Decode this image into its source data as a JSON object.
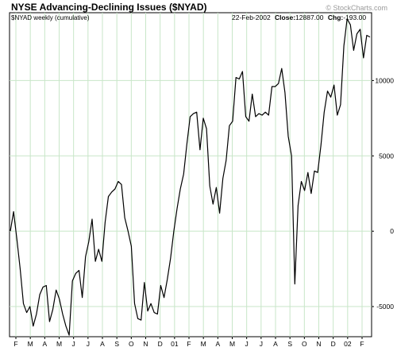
{
  "title": "NYSE Advancing-Declining Issues ($NYAD)",
  "subtitle": "$NYAD weekly (cumulative)",
  "quote": {
    "date": "22-Feb-2002",
    "close_label": "Close:",
    "close": "12887.00",
    "change_label": "Chg:",
    "change": "-193.00"
  },
  "watermark": "© StockCharts.com",
  "colors": {
    "line": "#000000",
    "grid": "#c8e6c8",
    "background": "#ffffff",
    "frame": "#000000"
  },
  "chart_data": {
    "type": "line",
    "ylim": [
      -7000,
      14500
    ],
    "y_ticks": [
      -5000,
      0,
      5000,
      10000
    ],
    "y_tick_labels": [
      "-5000",
      "0",
      "5000",
      "10000"
    ],
    "x_tick_labels": [
      "F",
      "M",
      "A",
      "M",
      "J",
      "J",
      "A",
      "S",
      "O",
      "N",
      "D",
      "01",
      "F",
      "M",
      "A",
      "M",
      "J",
      "J",
      "A",
      "S",
      "O",
      "N",
      "D",
      "02",
      "F"
    ],
    "grid": true,
    "series": [
      {
        "values": [
          0,
          1300,
          -500,
          -2500,
          -4800,
          -5400,
          -5000,
          -6300,
          -5500,
          -4200,
          -3700,
          -3600,
          -6000,
          -5200,
          -3900,
          -4500,
          -5500,
          -6300,
          -6900,
          -3300,
          -2800,
          -2600,
          -4400,
          -1700,
          -700,
          800,
          -2000,
          -1200,
          -2000,
          600,
          2300,
          2600,
          2800,
          3300,
          3100,
          900,
          0,
          -1000,
          -4800,
          -5800,
          -5900,
          -3400,
          -5300,
          -4800,
          -5400,
          -5500,
          -3600,
          -4400,
          -3200,
          -1800,
          0,
          1500,
          2800,
          3800,
          5800,
          7600,
          7800,
          7900,
          5400,
          7500,
          6800,
          3000,
          1800,
          2900,
          1200,
          3500,
          4700,
          7000,
          7300,
          10200,
          10100,
          10600,
          7600,
          7300,
          9100,
          7600,
          7800,
          7700,
          7900,
          7700,
          9600,
          9600,
          9800,
          10800,
          9200,
          6300,
          5000,
          -3500,
          1700,
          3300,
          2700,
          3900,
          2500,
          4000,
          3900,
          5700,
          7900,
          9300,
          8900,
          9700,
          7700,
          8400,
          12300,
          14100,
          13700,
          12000,
          13100,
          13400,
          11500,
          13000,
          12887
        ]
      }
    ]
  }
}
